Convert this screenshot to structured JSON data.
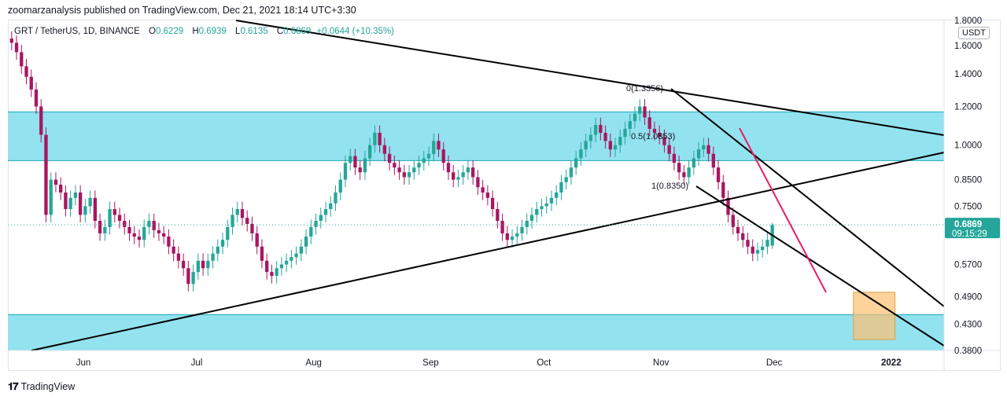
{
  "header": {
    "published": "zoomarzanalysis published on TradingView.com, Dec 21, 2021 18:14 UTC+3:30"
  },
  "legend": {
    "symbol": "GRT / TetherUS, 1D, BINANCE",
    "o_label": "O",
    "o": "0.6229",
    "h_label": "H",
    "h": "0.6939",
    "l_label": "L",
    "l": "0.6135",
    "c_label": "C",
    "c": "0.6869",
    "change": "+0.0644 (+10.35%)"
  },
  "price_axis": {
    "unit": "USDT",
    "ticks": [
      "1.8000",
      "1.6000",
      "1.4000",
      "1.2000",
      "1.0000",
      "0.8500",
      "0.7500",
      "0.6869",
      "0.5700",
      "0.4900",
      "0.4300",
      "0.3800"
    ],
    "last_price": "0.6869",
    "countdown": "09:15:29"
  },
  "time_axis": {
    "labels": [
      "Jun",
      "Jul",
      "Aug",
      "Sep",
      "Oct",
      "Nov",
      "Dec",
      "2022"
    ]
  },
  "annotations": {
    "fib_0": "0(1.3356)",
    "fib_05": "0.5(1.0853)",
    "fib_1": "1(0.8350)"
  },
  "colors": {
    "up": "#26a69a",
    "down": "#a81662",
    "zone_fill": "#93e2ef",
    "target_box": "#fcc070",
    "pink_line": "#e91e63",
    "trend_line": "#000000"
  },
  "footer": {
    "brand": "TradingView"
  },
  "chart_data": {
    "type": "candlestick",
    "symbol": "GRT / TetherUS",
    "interval": "1D",
    "y_scale": "log",
    "ylim": [
      0.38,
      1.8
    ],
    "x_range": [
      "2021-05-12",
      "2022-01-15"
    ],
    "last_close": 0.6869,
    "ohlc_last": {
      "open": 0.6229,
      "high": 0.6939,
      "low": 0.6135,
      "close": 0.6869
    },
    "support_resistance_zones": [
      {
        "low": 0.93,
        "high": 1.17
      },
      {
        "low": 0.38,
        "high": 0.45
      }
    ],
    "fib_levels": [
      {
        "level": 0,
        "price": 1.3356
      },
      {
        "level": 0.5,
        "price": 1.0853
      },
      {
        "level": 1,
        "price": 0.835
      }
    ],
    "target_box": {
      "low": 0.4,
      "high": 0.5
    },
    "series_close": [
      1.62,
      1.55,
      1.45,
      1.38,
      1.3,
      1.2,
      1.05,
      0.72,
      0.85,
      0.83,
      0.8,
      0.74,
      0.78,
      0.8,
      0.72,
      0.75,
      0.78,
      0.7,
      0.66,
      0.68,
      0.74,
      0.72,
      0.7,
      0.68,
      0.66,
      0.65,
      0.64,
      0.68,
      0.7,
      0.67,
      0.66,
      0.65,
      0.62,
      0.6,
      0.58,
      0.56,
      0.52,
      0.55,
      0.58,
      0.56,
      0.58,
      0.6,
      0.62,
      0.64,
      0.68,
      0.72,
      0.74,
      0.71,
      0.69,
      0.66,
      0.62,
      0.58,
      0.55,
      0.54,
      0.56,
      0.57,
      0.58,
      0.59,
      0.6,
      0.62,
      0.65,
      0.68,
      0.7,
      0.72,
      0.74,
      0.76,
      0.8,
      0.85,
      0.92,
      0.95,
      0.9,
      0.88,
      0.94,
      1.0,
      1.06,
      1.0,
      0.96,
      0.92,
      0.9,
      0.88,
      0.86,
      0.88,
      0.9,
      0.92,
      0.94,
      0.96,
      1.02,
      0.98,
      0.92,
      0.88,
      0.85,
      0.86,
      0.88,
      0.9,
      0.86,
      0.82,
      0.8,
      0.78,
      0.74,
      0.7,
      0.66,
      0.64,
      0.65,
      0.66,
      0.68,
      0.7,
      0.72,
      0.74,
      0.75,
      0.76,
      0.78,
      0.8,
      0.84,
      0.86,
      0.9,
      0.94,
      0.98,
      1.02,
      1.05,
      1.1,
      1.06,
      1.02,
      0.98,
      1.0,
      1.04,
      1.08,
      1.12,
      1.16,
      1.2,
      1.14,
      1.08,
      1.06,
      1.04,
      1.0,
      0.96,
      0.92,
      0.88,
      0.86,
      0.9,
      0.94,
      0.98,
      1.0,
      0.96,
      0.9,
      0.84,
      0.78,
      0.72,
      0.68,
      0.66,
      0.64,
      0.62,
      0.6,
      0.61,
      0.62,
      0.64,
      0.6869
    ]
  }
}
